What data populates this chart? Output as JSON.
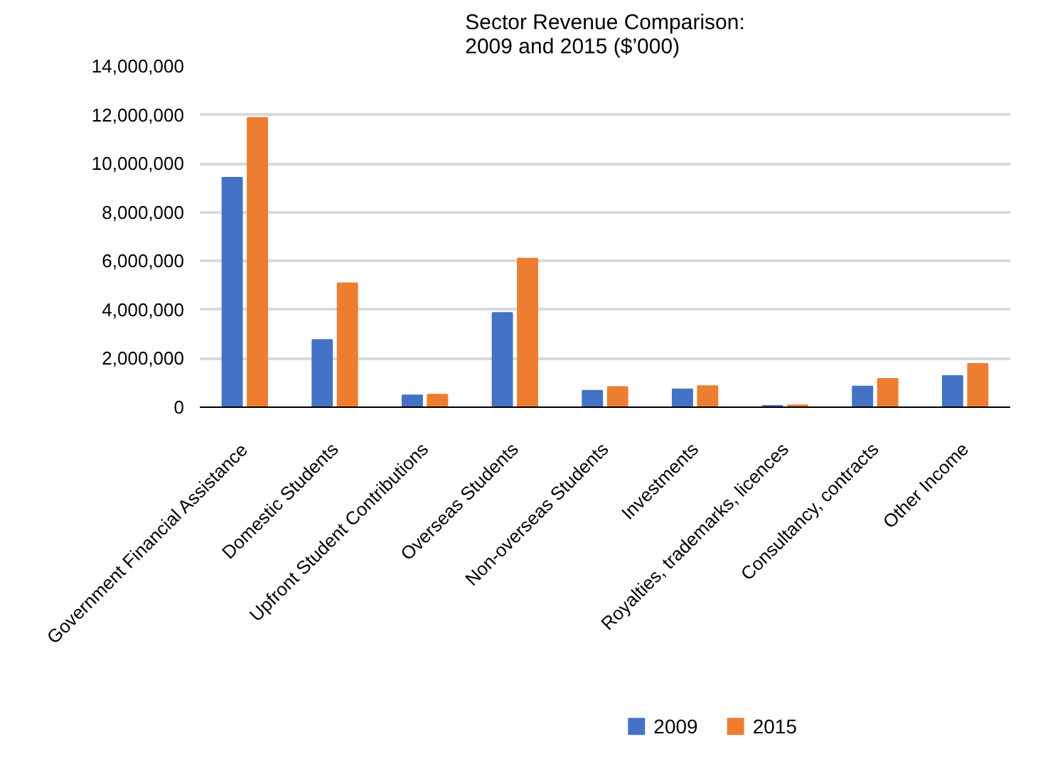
{
  "chart_data": {
    "type": "bar",
    "title": "Sector Revenue Comparison:\n2009 and 2015 ($’000)",
    "categories": [
      "Government Financial Assistance",
      "Domestic Students",
      "Upfront Student Contributions",
      "Overseas Students",
      "Non-overseas Students",
      "Investments",
      "Royalties, trademarks, licences",
      "Consultancy, contracts",
      "Other Income"
    ],
    "series": [
      {
        "name": "2009",
        "color": "#4472c4",
        "values": [
          9420000,
          2760000,
          490000,
          3870000,
          680000,
          740000,
          60000,
          850000,
          1280000
        ]
      },
      {
        "name": "2015",
        "color": "#ed7d31",
        "values": [
          11880000,
          5090000,
          520000,
          6100000,
          830000,
          870000,
          80000,
          1170000,
          1780000
        ]
      }
    ],
    "ylim": [
      0,
      14000000
    ],
    "yticks": [
      {
        "value": 0,
        "label": "0"
      },
      {
        "value": 2000000,
        "label": "2,000,000"
      },
      {
        "value": 4000000,
        "label": "4,000,000"
      },
      {
        "value": 6000000,
        "label": "6,000,000"
      },
      {
        "value": 8000000,
        "label": "8,000,000"
      },
      {
        "value": 10000000,
        "label": "10,000,000"
      },
      {
        "value": 12000000,
        "label": "12,000,000"
      },
      {
        "value": 14000000,
        "label": "14,000,000"
      }
    ],
    "grid": "y",
    "legend": "bottom"
  }
}
